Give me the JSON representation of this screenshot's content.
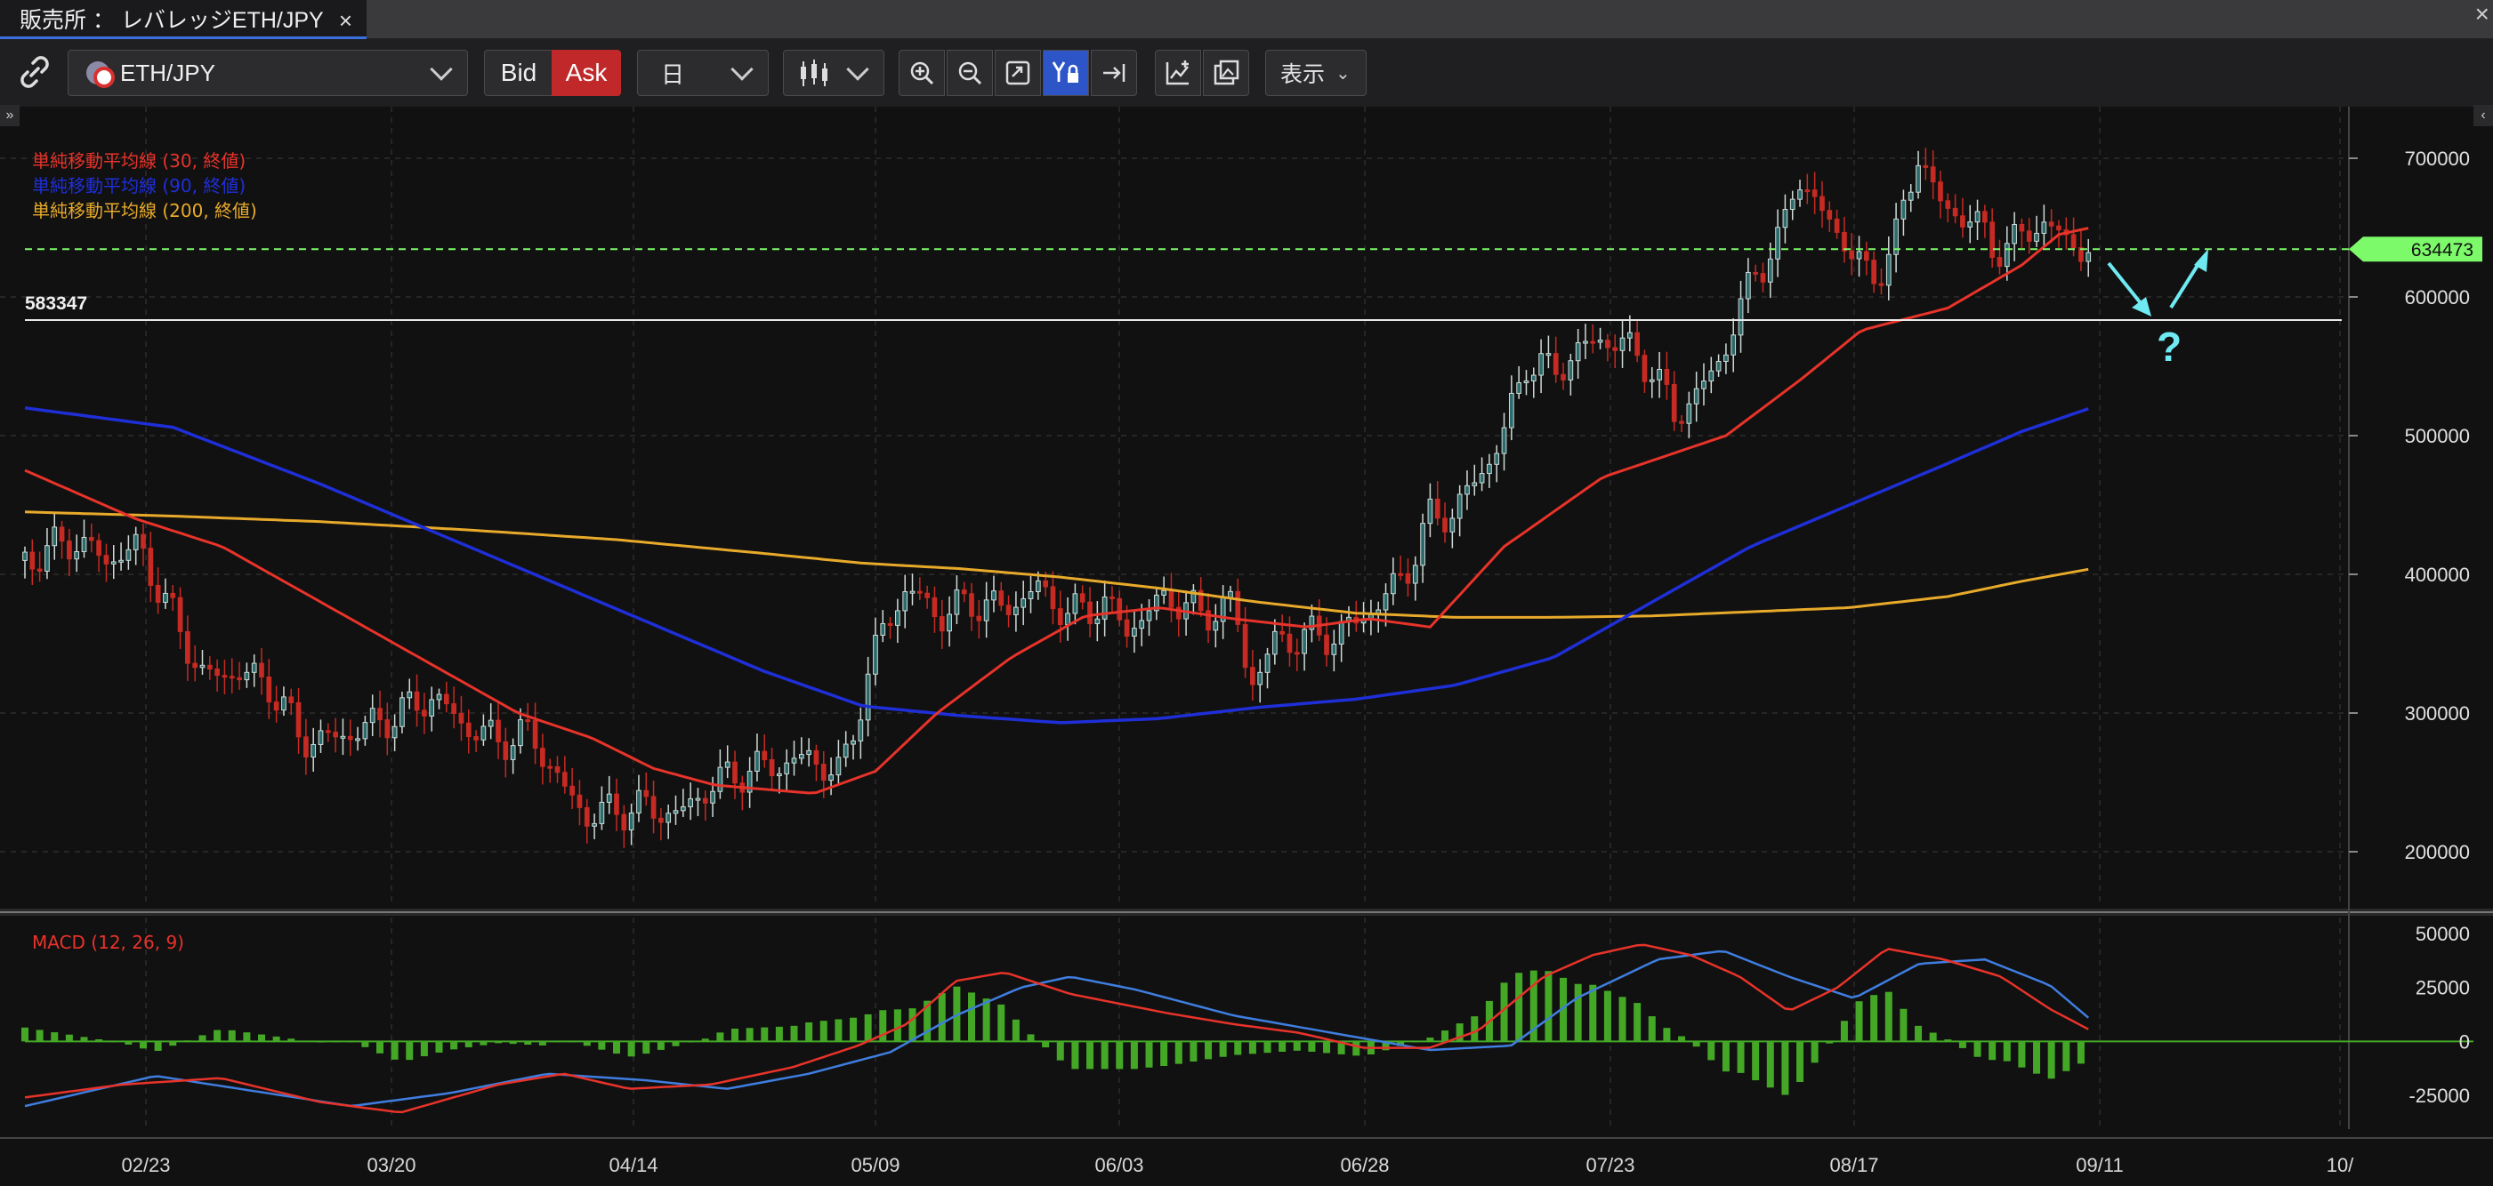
{
  "tab": {
    "title": "販売所 ： レバレッジETH/JPY",
    "close": "×"
  },
  "window": {
    "close": "×"
  },
  "toolbar": {
    "symbol": "ETH/JPY",
    "bid_label": "Bid",
    "ask_label": "Ask",
    "period": "日",
    "display_label": "表示",
    "tools": [
      "zoom-in-icon",
      "zoom-out-icon",
      "fit-screen-icon",
      "y-axis-lock-icon",
      "scroll-to-end-icon",
      "indicator-icon",
      "drawing-icon"
    ]
  },
  "legend": {
    "sma30": "単純移動平均線 (30, 終値)",
    "sma90": "単純移動平均線 (90, 終値)",
    "sma200": "単純移動平均線 (200, 終値)",
    "macd": "MACD (12, 26, 9)"
  },
  "colors": {
    "sma30": "#e8332a",
    "sma90": "#1f2fd8",
    "sma200": "#e8aa2a",
    "macd": "#e8332a",
    "signal": "#3f7ee0",
    "hist": "#44a826",
    "up": "#cfdbd8",
    "up_fill": "#2b6b6b",
    "down": "#c62a22",
    "current": "#7dfa6a",
    "annotation": "#6fe9f2"
  },
  "annotations": {
    "level_label": "583347",
    "question": "?"
  },
  "chart_data": {
    "type": "candlestick",
    "price_axis": {
      "ticks": [
        200000,
        300000,
        400000,
        500000,
        600000,
        700000
      ],
      "range": [
        160000,
        740000
      ]
    },
    "current_price": 634473,
    "horizontal_level": 583347,
    "x_ticks": [
      "02/23",
      "03/20",
      "04/14",
      "05/09",
      "06/03",
      "06/28",
      "07/23",
      "08/17",
      "09/11",
      "10/"
    ],
    "sma30": [
      [
        0,
        475000
      ],
      [
        45,
        440000
      ],
      [
        80,
        420000
      ],
      [
        110,
        390000
      ],
      [
        140,
        360000
      ],
      [
        170,
        330000
      ],
      [
        200,
        300000
      ],
      [
        230,
        282000
      ],
      [
        255,
        260000
      ],
      [
        280,
        248000
      ],
      [
        320,
        242000
      ],
      [
        345,
        258000
      ],
      [
        370,
        300000
      ],
      [
        400,
        340000
      ],
      [
        430,
        370000
      ],
      [
        460,
        376000
      ],
      [
        490,
        368000
      ],
      [
        520,
        362000
      ],
      [
        545,
        368000
      ],
      [
        570,
        362000
      ],
      [
        600,
        420000
      ],
      [
        640,
        470000
      ],
      [
        690,
        500000
      ],
      [
        720,
        540000
      ],
      [
        745,
        576000
      ],
      [
        780,
        592000
      ],
      [
        810,
        623000
      ],
      [
        825,
        645000
      ],
      [
        838,
        650000
      ]
    ],
    "sma90": [
      [
        0,
        520000
      ],
      [
        60,
        506000
      ],
      [
        120,
        465000
      ],
      [
        180,
        420000
      ],
      [
        240,
        375000
      ],
      [
        300,
        330000
      ],
      [
        340,
        305000
      ],
      [
        380,
        298000
      ],
      [
        420,
        293000
      ],
      [
        460,
        296000
      ],
      [
        500,
        304000
      ],
      [
        540,
        310000
      ],
      [
        580,
        320000
      ],
      [
        620,
        340000
      ],
      [
        660,
        380000
      ],
      [
        700,
        420000
      ],
      [
        740,
        450000
      ],
      [
        780,
        480000
      ],
      [
        810,
        503000
      ],
      [
        838,
        520000
      ]
    ],
    "sma200": [
      [
        0,
        445000
      ],
      [
        60,
        442000
      ],
      [
        120,
        438000
      ],
      [
        180,
        432000
      ],
      [
        240,
        425000
      ],
      [
        300,
        415000
      ],
      [
        340,
        408000
      ],
      [
        380,
        404000
      ],
      [
        420,
        398000
      ],
      [
        460,
        390000
      ],
      [
        500,
        380000
      ],
      [
        540,
        372000
      ],
      [
        580,
        369000
      ],
      [
        620,
        369000
      ],
      [
        660,
        370000
      ],
      [
        700,
        373000
      ],
      [
        740,
        376000
      ],
      [
        780,
        384000
      ],
      [
        810,
        395000
      ],
      [
        838,
        404000
      ]
    ],
    "macd_axis": {
      "ticks": [
        50000,
        25000,
        0,
        -25000
      ],
      "range": [
        -45000,
        55000
      ]
    }
  }
}
